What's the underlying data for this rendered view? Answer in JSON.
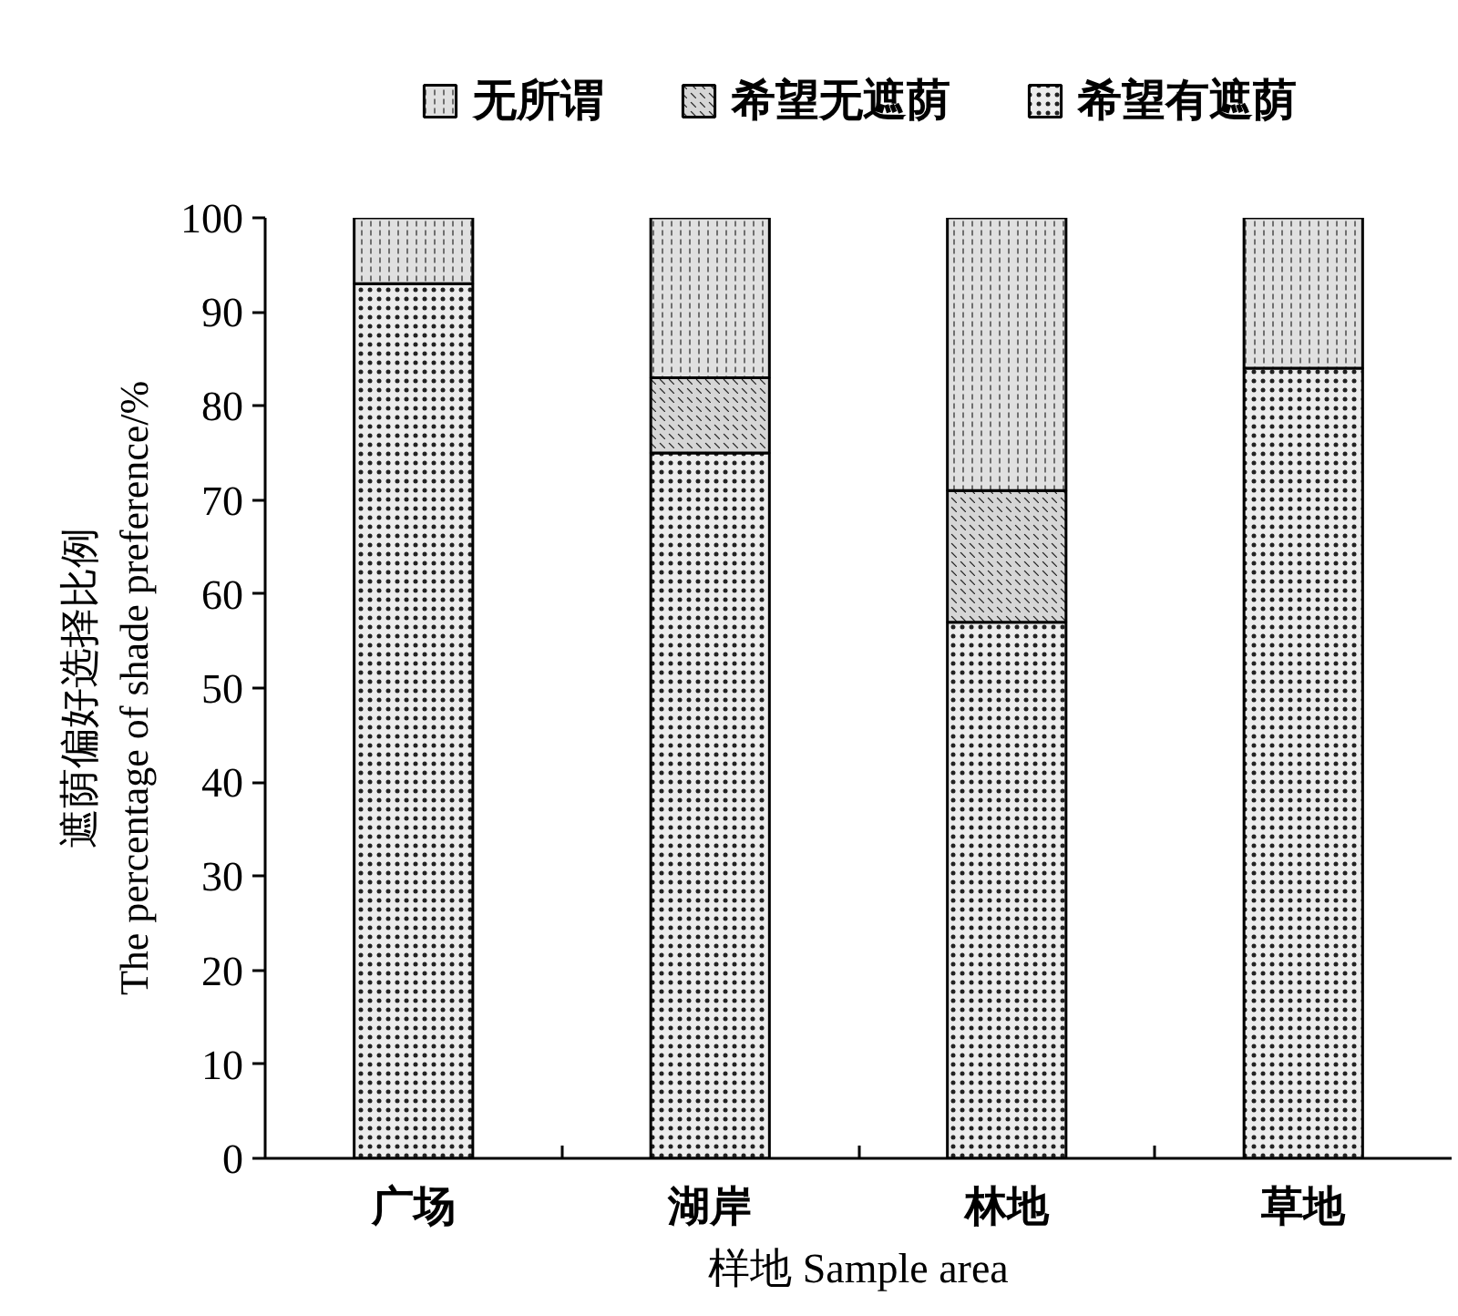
{
  "chart_data": {
    "type": "bar",
    "stacked": true,
    "categories": [
      "广场",
      "湖岸",
      "林地",
      "草地"
    ],
    "series": [
      {
        "name": "希望有遮荫",
        "color": "#ececec",
        "values": [
          93,
          75,
          57,
          84
        ]
      },
      {
        "name": "希望无遮荫",
        "color": "#d6d6d6",
        "values": [
          null,
          8,
          14,
          null
        ]
      },
      {
        "name": "无所谓",
        "color": "#e0e0e0",
        "values": [
          7,
          17,
          29,
          16
        ]
      }
    ],
    "xlabel": "样地 Sample area",
    "ylabel": "遮荫偏好选择比例\nThe percentage of shade preference/%",
    "ylim": [
      0,
      100
    ],
    "yticks": [
      0,
      10,
      20,
      30,
      40,
      50,
      60,
      70,
      80,
      90,
      100
    ],
    "legend": "top",
    "grid": false
  }
}
